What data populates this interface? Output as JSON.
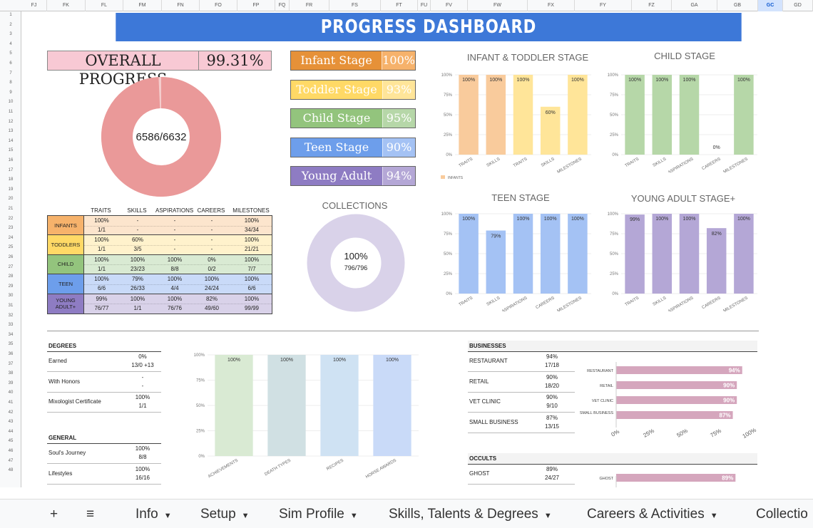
{
  "column_headers": [
    "FJ",
    "FK",
    "FL",
    "FM",
    "FN",
    "FO",
    "FP",
    "FQ",
    "FR",
    "FS",
    "FT",
    "FU",
    "FV",
    "FW",
    "FX",
    "FY",
    "FZ",
    "GA",
    "GB",
    "GC",
    "GD"
  ],
  "selected_column": "GC",
  "row_numbers": [
    "1",
    "2",
    "3",
    "4",
    "5",
    "6",
    "7",
    "8",
    "9",
    "10",
    "11",
    "12",
    "13",
    "14",
    "15",
    "16",
    "17",
    "18",
    "19",
    "20",
    "21",
    "22",
    "23",
    "24",
    "25",
    "26",
    "27",
    "28",
    "29",
    "30",
    "31",
    "32",
    "33",
    "34",
    "35",
    "36",
    "37",
    "38",
    "39",
    "40",
    "41",
    "42",
    "43",
    "44",
    "45",
    "46",
    "47",
    "48"
  ],
  "title": "PROGRESS DASHBOARD",
  "overall": {
    "label": "OVERALL PROGRESS",
    "value": "99.31%",
    "donut_label": "6586/6632",
    "fraction": 0.9931
  },
  "stages": [
    {
      "label": "Infant Stage",
      "value": "100%",
      "color": "#e69138",
      "light": "#f6b26b"
    },
    {
      "label": "Toddler Stage",
      "value": "93%",
      "color": "#ffd966",
      "light": "#ffe599"
    },
    {
      "label": "Child Stage",
      "value": "95%",
      "color": "#93c47d",
      "light": "#b6d7a8"
    },
    {
      "label": "Teen Stage",
      "value": "90%",
      "color": "#6d9eeb",
      "light": "#a4c2f4"
    },
    {
      "label": "Young Adult Stage+",
      "value": "94%",
      "color": "#8e7cc3",
      "light": "#b4a7d6"
    }
  ],
  "progress_table": {
    "headers": [
      "TRAITS",
      "SKILLS",
      "ASPIRATIONS",
      "CAREERS",
      "MILESTONES"
    ],
    "rows": [
      {
        "label": "INFANTS",
        "color": "#f6b26b",
        "bg": "#fce5cd",
        "pct": [
          "100%",
          "-",
          "-",
          "-",
          "100%"
        ],
        "count": [
          "1/1",
          "-",
          "-",
          "-",
          "34/34"
        ]
      },
      {
        "label": "TODDLERS",
        "color": "#ffd966",
        "bg": "#fff2cc",
        "pct": [
          "100%",
          "60%",
          "-",
          "-",
          "100%"
        ],
        "count": [
          "1/1",
          "3/5",
          "-",
          "-",
          "21/21"
        ]
      },
      {
        "label": "CHILD",
        "color": "#93c47d",
        "bg": "#d9ead3",
        "pct": [
          "100%",
          "100%",
          "100%",
          "0%",
          "100%"
        ],
        "count": [
          "1/1",
          "23/23",
          "8/8",
          "0/2",
          "7/7"
        ]
      },
      {
        "label": "TEEN",
        "color": "#6d9eeb",
        "bg": "#c9daf8",
        "pct": [
          "100%",
          "79%",
          "100%",
          "100%",
          "100%"
        ],
        "count": [
          "6/6",
          "26/33",
          "4/4",
          "24/24",
          "6/6"
        ]
      },
      {
        "label": "YOUNG ADULT+",
        "color": "#8e7cc3",
        "bg": "#d9d2e9",
        "pct": [
          "99%",
          "100%",
          "100%",
          "82%",
          "100%"
        ],
        "count": [
          "76/77",
          "1/1",
          "76/76",
          "49/60",
          "99/99"
        ]
      }
    ]
  },
  "collections": {
    "title": "COLLECTIONS",
    "pct": "100%",
    "count": "796/796",
    "fraction": 1.0
  },
  "chart_data": [
    {
      "type": "bar",
      "title": "INFANT & TODDLER STAGE",
      "categories": [
        "TRAITS",
        "SKILLS",
        "TRAITS",
        "SKILLS",
        "MILESTONES"
      ],
      "values": [
        100,
        100,
        100,
        60,
        100
      ],
      "labels": [
        "100%",
        "100%",
        "100%",
        "60%",
        "100%"
      ],
      "colors": [
        "#f9cb9c",
        "#f9cb9c",
        "#ffe599",
        "#ffe599",
        "#ffe599"
      ],
      "yticks": [
        "0%",
        "25%",
        "50%",
        "75%",
        "100%"
      ],
      "ylim": [
        0,
        100
      ],
      "legend": [
        "INFANTS"
      ],
      "legend_color": "#f9cb9c"
    },
    {
      "type": "bar",
      "title": "CHILD STAGE",
      "categories": [
        "TRAITS",
        "SKILLS",
        "ASPIRATIONS",
        "CAREERS",
        "MILESTONES"
      ],
      "values": [
        100,
        100,
        100,
        0,
        100
      ],
      "labels": [
        "100%",
        "100%",
        "100%",
        "0%",
        "100%"
      ],
      "colors": [
        "#b6d7a8",
        "#b6d7a8",
        "#b6d7a8",
        "#b6d7a8",
        "#b6d7a8"
      ],
      "yticks": [
        "0%",
        "25%",
        "50%",
        "75%",
        "100%"
      ],
      "ylim": [
        0,
        100
      ]
    },
    {
      "type": "bar",
      "title": "TEEN STAGE",
      "categories": [
        "TRAITS",
        "SKILLS",
        "ASPIRATIONS",
        "CAREERS",
        "MILESTONES"
      ],
      "values": [
        100,
        79,
        100,
        100,
        100
      ],
      "labels": [
        "100%",
        "79%",
        "100%",
        "100%",
        "100%"
      ],
      "colors": [
        "#a4c2f4",
        "#a4c2f4",
        "#a4c2f4",
        "#a4c2f4",
        "#a4c2f4"
      ],
      "yticks": [
        "0%",
        "25%",
        "50%",
        "75%",
        "100%"
      ],
      "ylim": [
        0,
        100
      ]
    },
    {
      "type": "bar",
      "title": "YOUNG ADULT STAGE+",
      "categories": [
        "TRAITS",
        "SKILLS",
        "ASPIRATIONS",
        "CAREERS",
        "MILESTONES"
      ],
      "values": [
        99,
        100,
        100,
        82,
        100
      ],
      "labels": [
        "99%",
        "100%",
        "100%",
        "82%",
        "100%"
      ],
      "colors": [
        "#b4a7d6",
        "#b4a7d6",
        "#b4a7d6",
        "#b4a7d6",
        "#b4a7d6"
      ],
      "yticks": [
        "0%",
        "25%",
        "50%",
        "75%",
        "100%"
      ],
      "ylim": [
        0,
        100
      ]
    },
    {
      "type": "bar",
      "title": "",
      "categories": [
        "ACHIEVEMENTS",
        "DEATH TYPES",
        "RECIPES",
        "HORSE AWARDS"
      ],
      "values": [
        100,
        100,
        100,
        100
      ],
      "labels": [
        "100%",
        "100%",
        "100%",
        "100%"
      ],
      "colors": [
        "#d9ead3",
        "#d0e0e3",
        "#cfe2f3",
        "#c9daf8"
      ],
      "yticks": [
        "0%",
        "25%",
        "50%",
        "75%",
        "100%"
      ],
      "ylim": [
        0,
        100
      ]
    },
    {
      "type": "bar",
      "orientation": "horizontal",
      "title": "",
      "categories": [
        "RESTAURANT",
        "RETAIL",
        "VET CLINIC",
        "SMALL BUSINESS"
      ],
      "values": [
        94,
        90,
        90,
        87
      ],
      "labels": [
        "94%",
        "90%",
        "90%",
        "87%"
      ],
      "color": "#d5a6bd",
      "xticks": [
        "0%",
        "25%",
        "50%",
        "75%",
        "100%"
      ],
      "xlim": [
        0,
        100
      ]
    },
    {
      "type": "bar",
      "orientation": "horizontal",
      "title": "",
      "categories": [
        "GHOST"
      ],
      "values": [
        89
      ],
      "labels": [
        "89%"
      ],
      "color": "#d5a6bd",
      "xlim": [
        0,
        100
      ]
    }
  ],
  "degrees": {
    "title": "DEGREES",
    "rows": [
      {
        "label": "Earned",
        "pct": "0%",
        "count": "13/0 +13"
      },
      {
        "label": "With Honors",
        "pct": "-",
        "count": "-"
      },
      {
        "label": "Mixologist Certificate",
        "pct": "100%",
        "count": "1/1"
      }
    ]
  },
  "general": {
    "title": "GENERAL",
    "rows": [
      {
        "label": "Soul's Journey",
        "pct": "100%",
        "count": "8/8"
      },
      {
        "label": "Lifestyles",
        "pct": "100%",
        "count": "16/16"
      }
    ]
  },
  "businesses": {
    "title": "BUSINESSES",
    "rows": [
      {
        "label": "RESTAURANT",
        "pct": "94%",
        "count": "17/18"
      },
      {
        "label": "RETAIL",
        "pct": "90%",
        "count": "18/20"
      },
      {
        "label": "VET CLINIC",
        "pct": "90%",
        "count": "9/10"
      },
      {
        "label": "SMALL BUSINESS",
        "pct": "87%",
        "count": "13/15"
      }
    ]
  },
  "occults": {
    "title": "OCCULTS",
    "rows": [
      {
        "label": "GHOST",
        "pct": "89%",
        "count": "24/27"
      }
    ]
  },
  "tabs": {
    "add": "+",
    "menu": "≡",
    "items": [
      "Info",
      "Setup",
      "Sim Profile",
      "Skills, Talents & Degrees",
      "Careers & Activities",
      "Collectio"
    ]
  },
  "colors": {
    "banner": "#3d78d8",
    "overall_donut": "#ea9999",
    "collections_donut": "#d9d2e9"
  }
}
